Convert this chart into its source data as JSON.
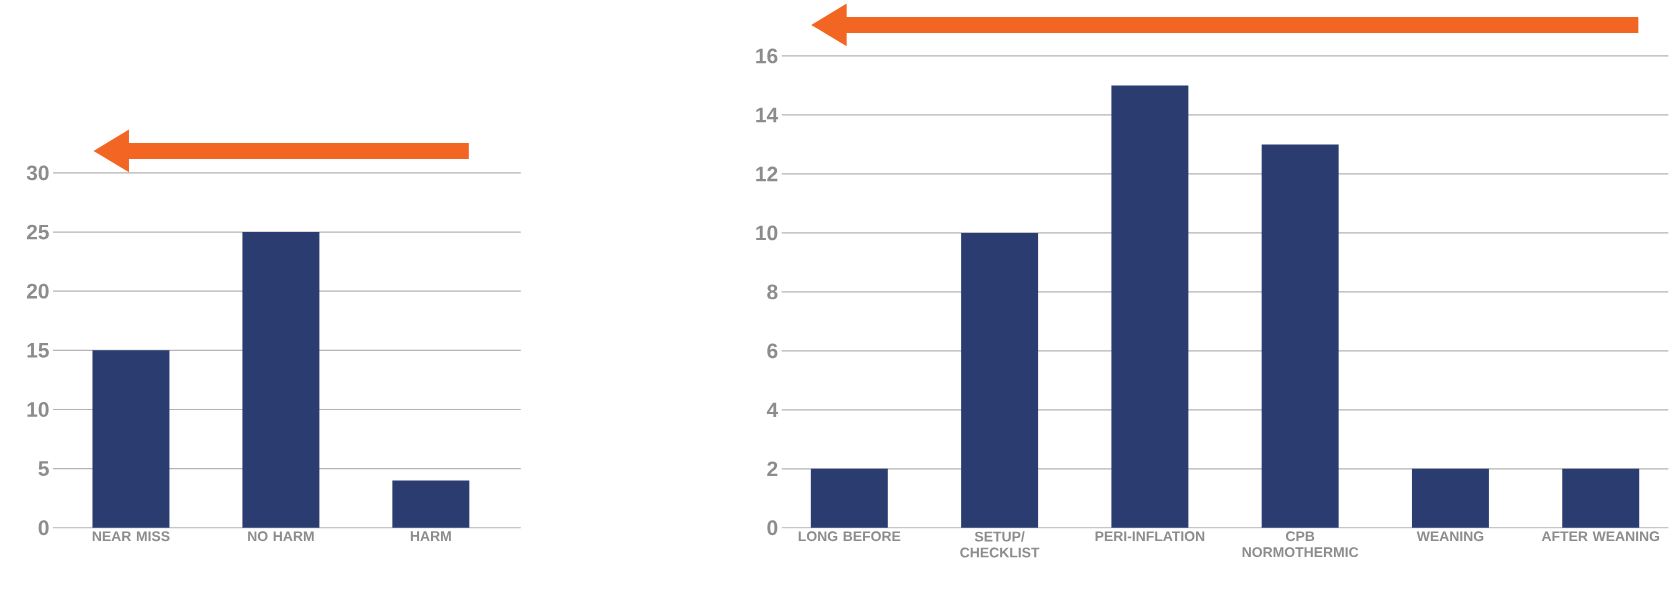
{
  "chart_data": [
    {
      "type": "bar",
      "categories": [
        "NEAR MISS",
        "NO HARM",
        "HARM"
      ],
      "values": [
        15,
        25,
        4
      ],
      "color": "#2b3c70",
      "ylim": [
        0,
        30
      ],
      "yticks": [
        0,
        5,
        10,
        15,
        20,
        25,
        30
      ],
      "grid": "y"
    },
    {
      "type": "bar",
      "categories": [
        "LONG BEFORE",
        "SETUP/ CHECKLIST",
        "PERI-INFLATION",
        "CPB NORMOTHERMIC",
        "WEANING",
        "AFTER WEANING"
      ],
      "values": [
        2,
        10,
        15,
        13,
        2,
        2
      ],
      "color": "#2b3c70",
      "ylim": [
        0,
        16
      ],
      "yticks": [
        0,
        2,
        4,
        6,
        8,
        10,
        12,
        14,
        16
      ],
      "grid": "y"
    }
  ]
}
